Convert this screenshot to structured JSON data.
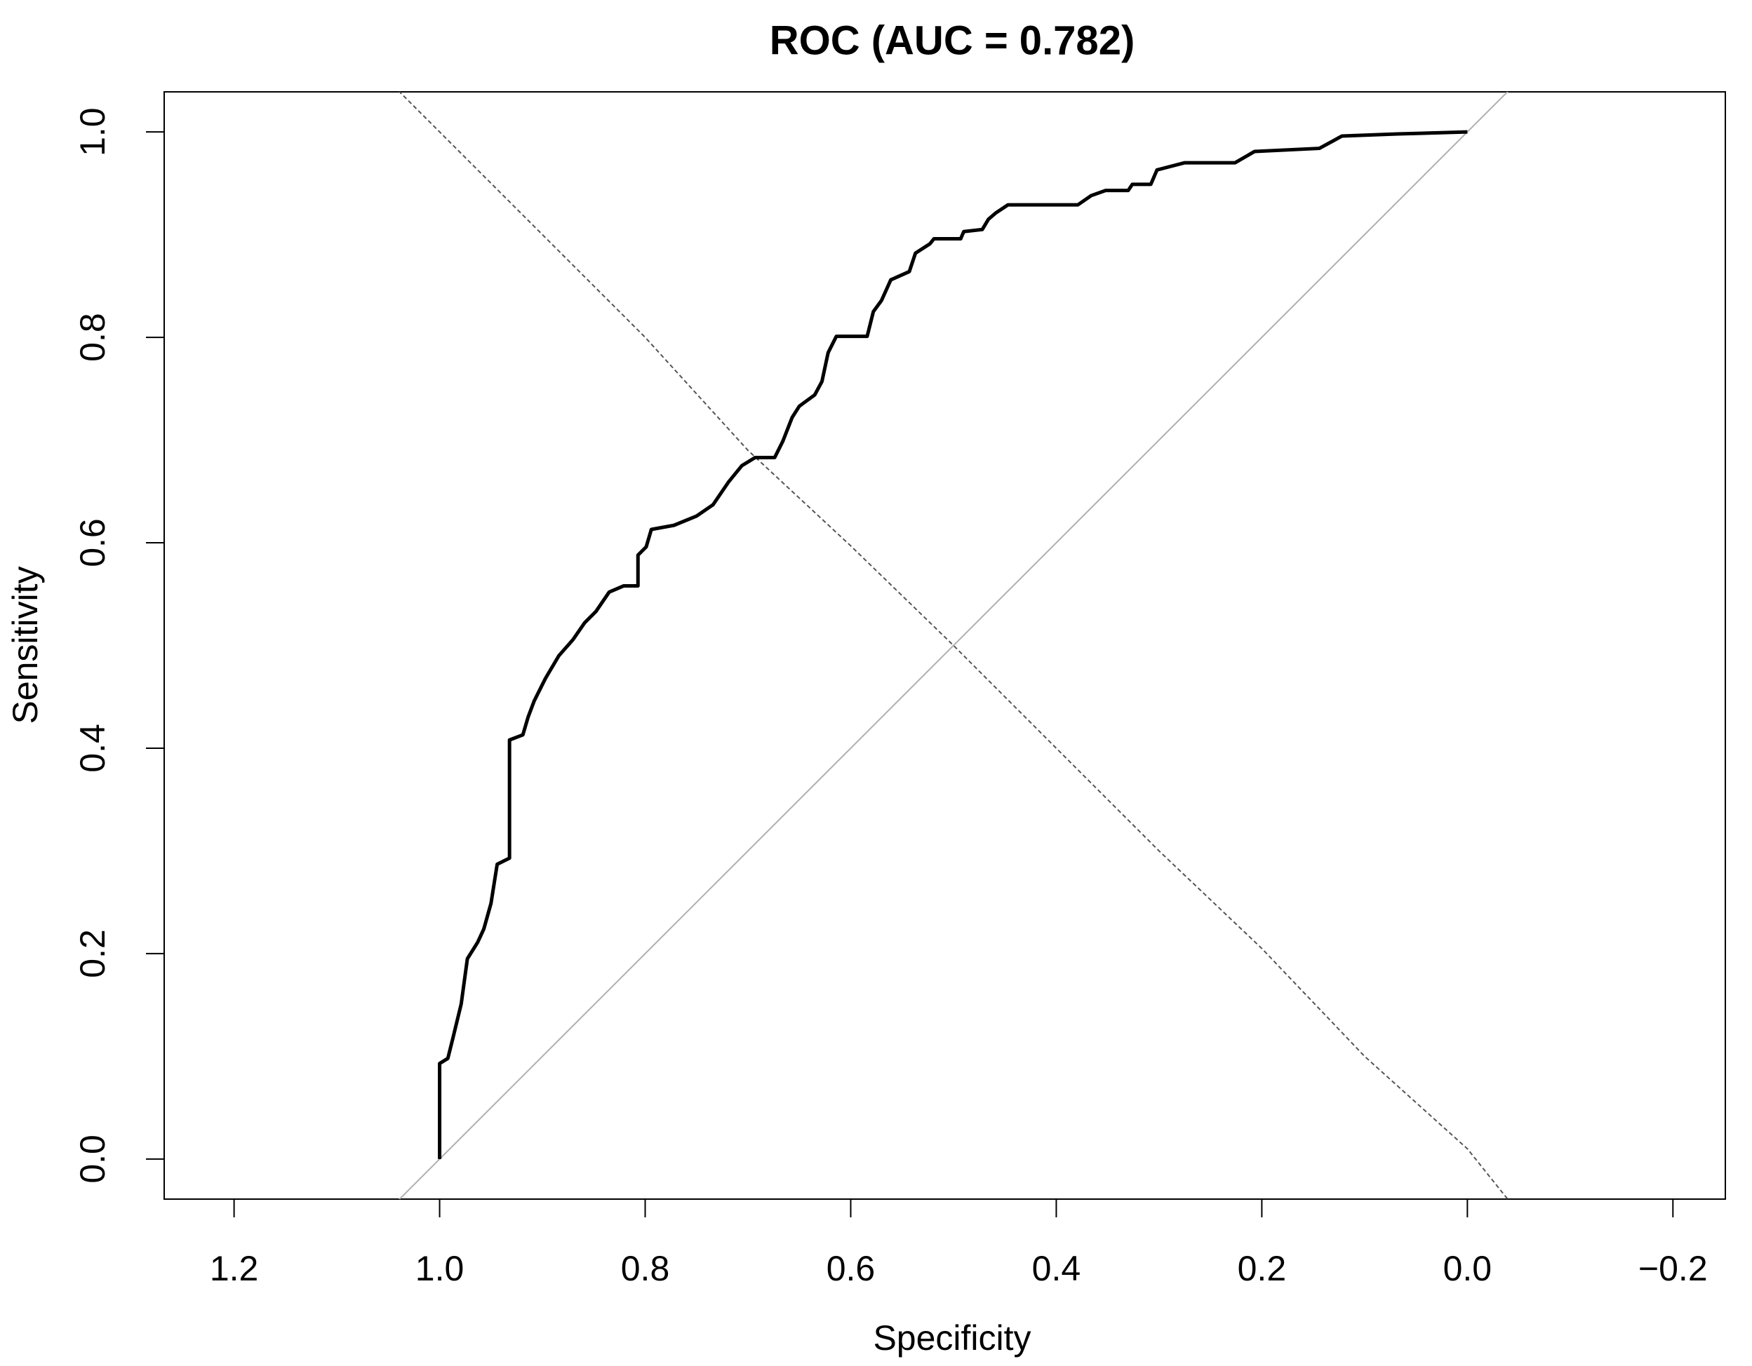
{
  "chart_data": {
    "type": "line",
    "title": "ROC (AUC = 0.782)",
    "x_label": "Specificity",
    "y_label": "Sensitivity",
    "xlim": [
      1.268,
      -0.251
    ],
    "ylim": [
      -0.039,
      1.039
    ],
    "xticks": [
      {
        "value": 1.2,
        "label": "1.2"
      },
      {
        "value": 1.0,
        "label": "1.0"
      },
      {
        "value": 0.8,
        "label": "0.8"
      },
      {
        "value": 0.6,
        "label": "0.6"
      },
      {
        "value": 0.4,
        "label": "0.4"
      },
      {
        "value": 0.2,
        "label": "0.2"
      },
      {
        "value": 0.0,
        "label": "0.0"
      },
      {
        "value": -0.2,
        "label": "−0.2"
      }
    ],
    "yticks": [
      {
        "value": 0.0,
        "label": "0.0"
      },
      {
        "value": 0.2,
        "label": "0.2"
      },
      {
        "value": 0.4,
        "label": "0.4"
      },
      {
        "value": 0.6,
        "label": "0.6"
      },
      {
        "value": 0.8,
        "label": "0.8"
      },
      {
        "value": 1.0,
        "label": "1.0"
      }
    ],
    "curve": {
      "color": "#000000",
      "x": [
        1,
        1,
        0.992,
        0.987,
        0.979,
        0.973,
        0.963,
        0.957,
        0.95,
        0.944,
        0.932,
        0.932,
        0.919,
        0.914,
        0.908,
        0.897,
        0.884,
        0.87,
        0.859,
        0.848,
        0.835,
        0.821,
        0.807,
        0.807,
        0.799,
        0.794,
        0.772,
        0.75,
        0.734,
        0.719,
        0.706,
        0.693,
        0.674,
        0.666,
        0.657,
        0.65,
        0.635,
        0.628,
        0.622,
        0.614,
        0.584,
        0.578,
        0.57,
        0.561,
        0.543,
        0.537,
        0.523,
        0.519,
        0.493,
        0.49,
        0.472,
        0.466,
        0.459,
        0.447,
        0.379,
        0.366,
        0.352,
        0.33,
        0.326,
        0.308,
        0.302,
        0.275,
        0.226,
        0.207,
        0.144,
        0.122,
        0.068,
        0
      ],
      "y": [
        0,
        0.093,
        0.098,
        0.118,
        0.151,
        0.195,
        0.211,
        0.224,
        0.249,
        0.287,
        0.293,
        0.408,
        0.413,
        0.43,
        0.446,
        0.468,
        0.49,
        0.506,
        0.522,
        0.533,
        0.552,
        0.558,
        0.558,
        0.588,
        0.596,
        0.613,
        0.617,
        0.626,
        0.637,
        0.659,
        0.675,
        0.683,
        0.683,
        0.699,
        0.722,
        0.733,
        0.744,
        0.757,
        0.785,
        0.801,
        0.801,
        0.825,
        0.836,
        0.856,
        0.864,
        0.882,
        0.891,
        0.896,
        0.896,
        0.903,
        0.905,
        0.915,
        0.921,
        0.929,
        0.929,
        0.938,
        0.943,
        0.943,
        0.949,
        0.949,
        0.963,
        0.97,
        0.97,
        0.981,
        0.984,
        0.996,
        0.998,
        1
      ]
    },
    "dashed": {
      "color": "#555555",
      "x": [
        1.04,
        0.9,
        0.8,
        0.7,
        0.6,
        0.5,
        0.4,
        0.3,
        0.2,
        0.1,
        0.0,
        -0.04
      ],
      "y": [
        1.04,
        0.9,
        0.8,
        0.69,
        0.597,
        0.5,
        0.4,
        0.3,
        0.205,
        0.1,
        0.01,
        -0.04
      ]
    },
    "diagonal": {
      "intercept": 1,
      "slope": -1,
      "color": "#b0b0b0"
    }
  }
}
